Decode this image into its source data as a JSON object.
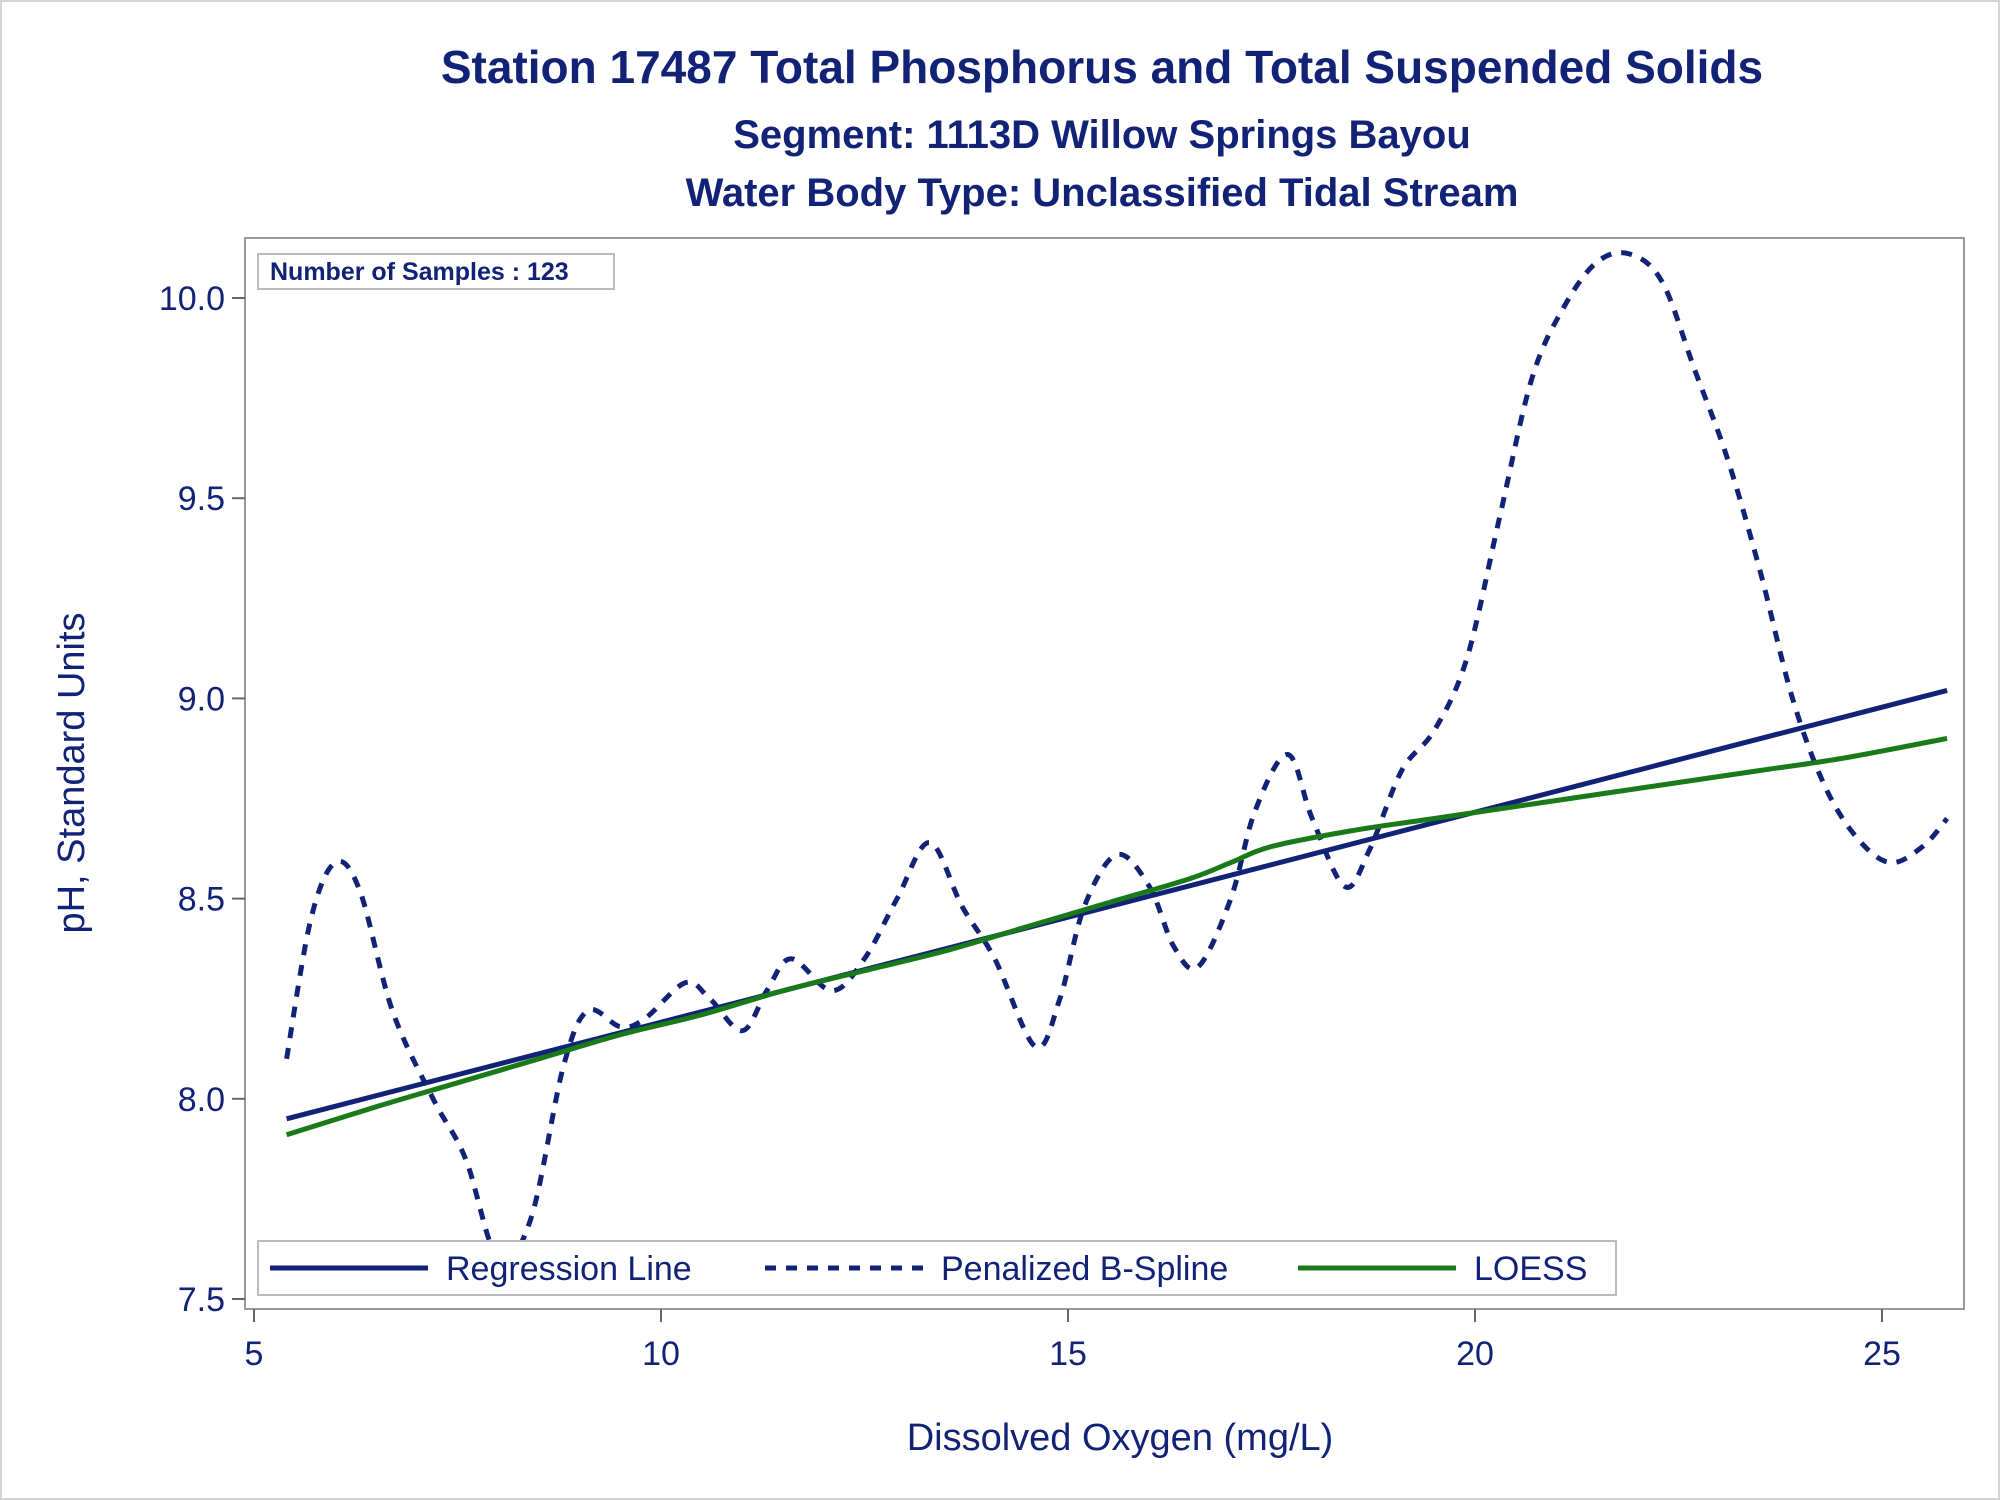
{
  "chart_data": {
    "type": "line",
    "title": "Station 17487  Total Phosphorus and Total Suspended Solids",
    "subtitle": "Segment: 1113D  Willow Springs Bayou",
    "subtitle2": "Water Body Type: Unclassified Tidal Stream",
    "xlabel": "Dissolved Oxygen (mg/L)",
    "ylabel": "pH, Standard Units",
    "xlim": [
      5,
      26
    ],
    "ylim": [
      7.5,
      10.1
    ],
    "x_ticks": [
      5,
      10,
      15,
      20,
      25
    ],
    "y_ticks": [
      7.5,
      8.0,
      8.5,
      9.0,
      9.5,
      10.0
    ],
    "x_tick_labels": [
      "5",
      "10",
      "15",
      "20",
      "25"
    ],
    "y_tick_labels": [
      "7.5",
      "8.0",
      "8.5",
      "9.0",
      "9.5",
      "10.0"
    ],
    "annotation": "Number of Samples : 123",
    "grid": false,
    "legend_position": "bottom-inside",
    "series": [
      {
        "name": "Regression Line",
        "style": "solid",
        "color": "#112277",
        "x": [
          5.4,
          25.8
        ],
        "y": [
          7.95,
          9.02
        ]
      },
      {
        "name": "Penalized B-Spline",
        "style": "dashed",
        "color": "#112277",
        "x": [
          5.4,
          5.7,
          6.0,
          6.3,
          6.7,
          7.2,
          7.6,
          8.0,
          8.4,
          8.8,
          9.1,
          9.5,
          9.8,
          10.3,
          10.6,
          11.0,
          11.3,
          11.6,
          12.1,
          12.5,
          12.9,
          13.3,
          13.7,
          14.1,
          14.6,
          14.9,
          15.2,
          15.6,
          16.0,
          16.3,
          16.6,
          17.0,
          17.3,
          17.7,
          18.0,
          18.4,
          18.7,
          19.1,
          19.5,
          19.9,
          20.3,
          20.7,
          21.1,
          21.5,
          21.9,
          22.3,
          22.7,
          23.1,
          23.5,
          23.9,
          24.3,
          24.7,
          25.1,
          25.5,
          25.8
        ],
        "y": [
          8.1,
          8.45,
          8.59,
          8.52,
          8.22,
          8.0,
          7.85,
          7.6,
          7.7,
          8.08,
          8.22,
          8.18,
          8.2,
          8.29,
          8.25,
          8.17,
          8.27,
          8.35,
          8.27,
          8.35,
          8.5,
          8.64,
          8.48,
          8.35,
          8.13,
          8.25,
          8.48,
          8.61,
          8.53,
          8.38,
          8.33,
          8.5,
          8.72,
          8.86,
          8.7,
          8.53,
          8.62,
          8.82,
          8.92,
          9.1,
          9.45,
          9.8,
          9.98,
          10.09,
          10.11,
          10.04,
          9.82,
          9.6,
          9.32,
          9.0,
          8.78,
          8.65,
          8.59,
          8.63,
          8.7
        ]
      },
      {
        "name": "LOESS",
        "style": "solid",
        "color": "#1a7a1a",
        "x": [
          5.4,
          6.5,
          7.5,
          8.5,
          9.5,
          10.5,
          11.5,
          12.5,
          13.5,
          14.5,
          15.5,
          16.5,
          17.0,
          17.5,
          18.5,
          19.5,
          20.5,
          21.5,
          22.5,
          23.5,
          24.5,
          25.8
        ],
        "y": [
          7.91,
          7.98,
          8.04,
          8.1,
          8.16,
          8.21,
          8.27,
          8.32,
          8.37,
          8.43,
          8.49,
          8.55,
          8.59,
          8.63,
          8.67,
          8.7,
          8.73,
          8.76,
          8.79,
          8.82,
          8.85,
          8.9
        ]
      }
    ]
  }
}
